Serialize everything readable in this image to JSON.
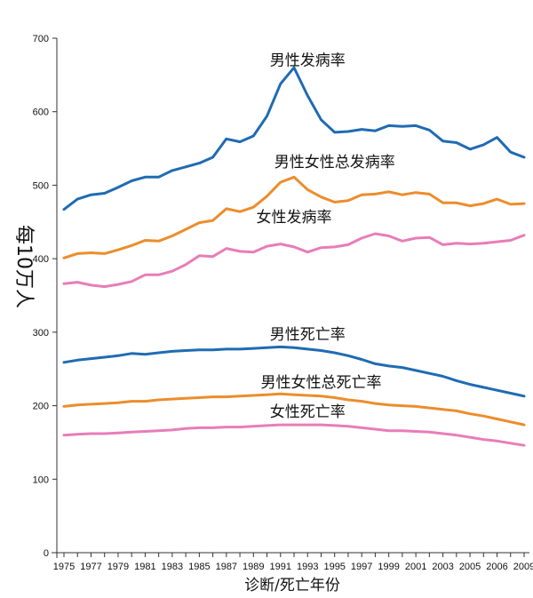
{
  "chart_data": {
    "type": "line",
    "ylabel": "每10万人",
    "xlabel": "诊断/死亡年份",
    "ylim": [
      0,
      700
    ],
    "y_ticks": [
      0,
      100,
      200,
      300,
      400,
      500,
      600,
      700
    ],
    "x_tick_labels": [
      "1975",
      "1977",
      "1979",
      "1981",
      "1983",
      "1985",
      "1987",
      "1989",
      "1991",
      "1993",
      "1995",
      "1997",
      "1999",
      "2001",
      "2003",
      "2005",
      "2006",
      "2009"
    ],
    "x": [
      1975,
      1976,
      1977,
      1978,
      1979,
      1980,
      1981,
      1982,
      1983,
      1984,
      1985,
      1986,
      1987,
      1988,
      1989,
      1990,
      1991,
      1992,
      1993,
      1994,
      1995,
      1996,
      1997,
      1998,
      1999,
      2000,
      2001,
      2002,
      2003,
      2004,
      2005,
      2006,
      2007,
      2008,
      2009
    ],
    "grid": false,
    "series": [
      {
        "name": "男性发病率",
        "color": "#1f6bb3",
        "values": [
          467,
          481,
          487,
          489,
          497,
          506,
          511,
          511,
          520,
          525,
          530,
          538,
          563,
          559,
          567,
          594,
          638,
          660,
          622,
          589,
          572,
          573,
          576,
          574,
          581,
          580,
          581,
          575,
          560,
          558,
          549,
          555,
          565,
          545,
          538
        ]
      },
      {
        "name": "男性女性总发病率",
        "color": "#ec8d2c",
        "values": [
          401,
          407,
          408,
          407,
          412,
          418,
          425,
          424,
          431,
          440,
          449,
          452,
          468,
          464,
          470,
          485,
          504,
          511,
          494,
          484,
          477,
          479,
          487,
          488,
          491,
          487,
          490,
          488,
          476,
          476,
          472,
          475,
          481,
          474,
          475
        ]
      },
      {
        "name": "女性发病率",
        "color": "#e87db8",
        "values": [
          366,
          368,
          364,
          362,
          365,
          369,
          378,
          378,
          383,
          392,
          404,
          403,
          414,
          410,
          409,
          417,
          420,
          416,
          409,
          415,
          416,
          419,
          428,
          434,
          431,
          424,
          428,
          429,
          419,
          421,
          420,
          421,
          423,
          425,
          432
        ]
      },
      {
        "name": "男性死亡率",
        "color": "#1f6bb3",
        "values": [
          259,
          262,
          264,
          266,
          268,
          271,
          270,
          272,
          274,
          275,
          276,
          276,
          277,
          277,
          278,
          279,
          280,
          279,
          277,
          275,
          272,
          268,
          263,
          257,
          254,
          252,
          248,
          244,
          240,
          234,
          229,
          225,
          221,
          217,
          213
        ]
      },
      {
        "name": "男性女性总死亡率",
        "color": "#ec8d2c",
        "values": [
          199,
          201,
          202,
          203,
          204,
          206,
          206,
          208,
          209,
          210,
          211,
          212,
          212,
          213,
          214,
          215,
          216,
          215,
          214,
          213,
          211,
          208,
          206,
          203,
          201,
          200,
          199,
          197,
          195,
          193,
          189,
          186,
          182,
          178,
          174
        ]
      },
      {
        "name": "女性死亡率",
        "color": "#e87db8",
        "values": [
          160,
          161,
          162,
          162,
          163,
          164,
          165,
          166,
          167,
          169,
          170,
          170,
          171,
          171,
          172,
          173,
          174,
          174,
          174,
          174,
          173,
          172,
          170,
          168,
          166,
          166,
          165,
          164,
          162,
          160,
          157,
          154,
          152,
          149,
          146
        ]
      }
    ]
  }
}
